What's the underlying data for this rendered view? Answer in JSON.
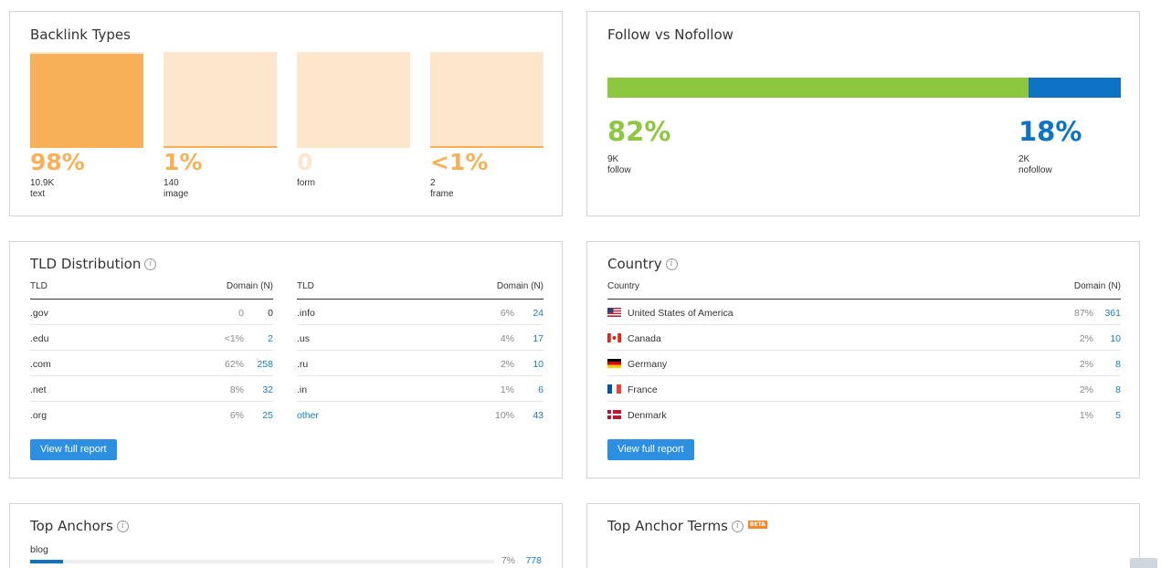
{
  "backlink_types": {
    "title": "Backlink Types",
    "items": [
      {
        "pct": "98%",
        "count": "10.9K",
        "label": "text",
        "fill": 0.98
      },
      {
        "pct": "1%",
        "count": "140",
        "label": "image",
        "fill": 0.01
      },
      {
        "pct": "0",
        "count": "",
        "label": "form",
        "fill": 0
      },
      {
        "pct": "<1%",
        "count": "2",
        "label": "frame",
        "fill": 0.005
      }
    ]
  },
  "follow": {
    "title": "Follow vs Nofollow",
    "follow_pct": "82%",
    "follow_count": "9K",
    "follow_label": "follow",
    "nofollow_pct": "18%",
    "nofollow_count": "2K",
    "nofollow_label": "nofollow",
    "follow_fraction": 0.82,
    "colors": {
      "follow": "#8dc63f",
      "nofollow": "#0e73c3"
    }
  },
  "tld": {
    "title": "TLD Distribution",
    "header_tld": "TLD",
    "header_domain": "Domain (N)",
    "left_rows": [
      {
        "tld": ".gov",
        "pct": "0",
        "num": "0"
      },
      {
        "tld": ".edu",
        "pct": "<1%",
        "num": "2"
      },
      {
        "tld": ".com",
        "pct": "62%",
        "num": "258"
      },
      {
        "tld": ".net",
        "pct": "8%",
        "num": "32"
      },
      {
        "tld": ".org",
        "pct": "6%",
        "num": "25"
      }
    ],
    "right_rows": [
      {
        "tld": ".info",
        "pct": "6%",
        "num": "24"
      },
      {
        "tld": ".us",
        "pct": "4%",
        "num": "17"
      },
      {
        "tld": ".ru",
        "pct": "2%",
        "num": "10"
      },
      {
        "tld": ".in",
        "pct": "1%",
        "num": "6"
      },
      {
        "tld": "other",
        "pct": "10%",
        "num": "43"
      }
    ],
    "button": "View full report"
  },
  "country": {
    "title": "Country",
    "header_country": "Country",
    "header_domain": "Domain (N)",
    "rows": [
      {
        "name": "United States of America",
        "flag": "us-flag-icon",
        "pct": "87%",
        "num": "361"
      },
      {
        "name": "Canada",
        "flag": "ca-flag-icon",
        "pct": "2%",
        "num": "10"
      },
      {
        "name": "Germany",
        "flag": "de-flag-icon",
        "pct": "2%",
        "num": "8"
      },
      {
        "name": "France",
        "flag": "fr-flag-icon",
        "pct": "2%",
        "num": "8"
      },
      {
        "name": "Denmark",
        "flag": "dk-flag-icon",
        "pct": "1%",
        "num": "5"
      }
    ],
    "button": "View full report"
  },
  "top_anchors": {
    "title": "Top Anchors",
    "rows": [
      {
        "anchor": "blog",
        "pct": "7%",
        "num": "778",
        "fraction": 0.07
      }
    ]
  },
  "top_anchor_terms": {
    "title": "Top Anchor Terms",
    "badge": "BETA"
  }
}
